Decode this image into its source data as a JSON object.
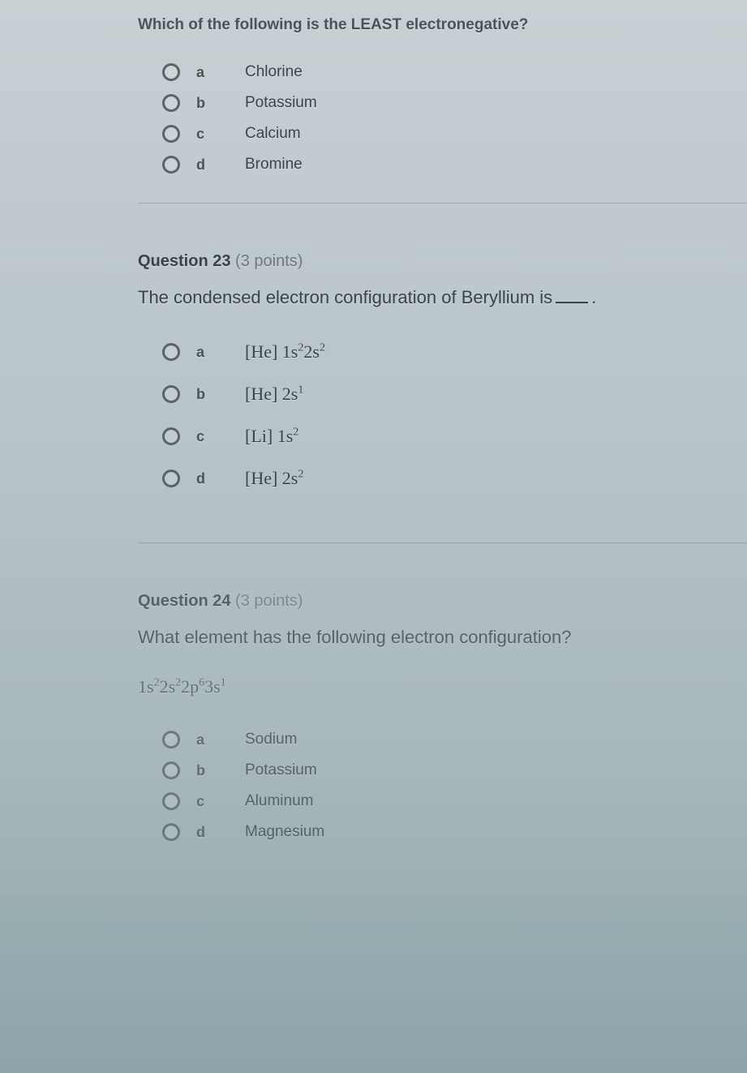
{
  "q22": {
    "prompt": "Which of the following is the LEAST electronegative?",
    "options": [
      {
        "letter": "a",
        "text": "Chlorine"
      },
      {
        "letter": "b",
        "text": "Potassium"
      },
      {
        "letter": "c",
        "text": "Calcium"
      },
      {
        "letter": "d",
        "text": "Bromine"
      }
    ]
  },
  "q23": {
    "header": "Question 23",
    "points": "(3 points)",
    "prompt_pre": "The condensed electron configuration of Beryllium is",
    "prompt_post": ".",
    "options": [
      {
        "letter": "a",
        "formula_html": "[He] 1s<sup>2</sup>2s<sup>2</sup>"
      },
      {
        "letter": "b",
        "formula_html": "[He] 2s<sup>1</sup>"
      },
      {
        "letter": "c",
        "formula_html": "[Li] 1s<sup>2</sup>"
      },
      {
        "letter": "d",
        "formula_html": "[He] 2s<sup>2</sup>"
      }
    ]
  },
  "q24": {
    "header": "Question 24",
    "points": "(3 points)",
    "prompt": "What element has the following electron configuration?",
    "formula_html": "1s<sup>2</sup>2s<sup>2</sup>2p<sup>6</sup>3s<sup>1</sup>",
    "options": [
      {
        "letter": "a",
        "text": "Sodium"
      },
      {
        "letter": "b",
        "text": "Potassium"
      },
      {
        "letter": "c",
        "text": "Aluminum"
      },
      {
        "letter": "d",
        "text": "Magnesium"
      }
    ]
  }
}
